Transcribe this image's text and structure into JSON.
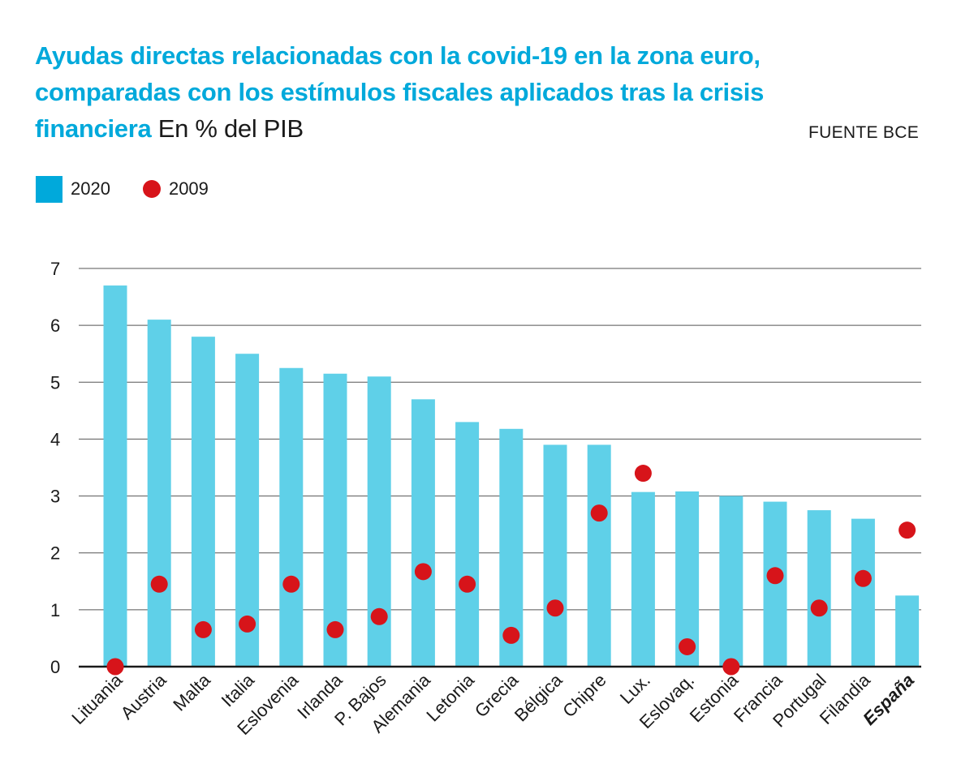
{
  "header": {
    "title": "Ayudas directas relacionadas con la covid-19 en la zona euro, comparadas con los estímulos fiscales aplicados tras la crisis financiera",
    "unit": "En % del PIB",
    "source": "FUENTE BCE"
  },
  "colors": {
    "bar": "#5fd0e8",
    "dot": "#d7141a",
    "title": "#00a9db",
    "grid": "#555555"
  },
  "chart_data": {
    "type": "bar",
    "categories": [
      "Lituania",
      "Austria",
      "Malta",
      "Italia",
      "Eslovenia",
      "Irlanda",
      "P. Bajos",
      "Alemania",
      "Letonia",
      "Grecia",
      "Bélgica",
      "Chipre",
      "Lux.",
      "Eslovaq.",
      "Estonia",
      "Francia",
      "Portugal",
      "Filandia",
      "España"
    ],
    "highlight_category": "España",
    "series": [
      {
        "name": "2020",
        "kind": "bar",
        "values": [
          6.7,
          6.1,
          5.8,
          5.5,
          5.25,
          5.15,
          5.1,
          4.7,
          4.3,
          4.18,
          3.9,
          3.9,
          3.07,
          3.08,
          3.0,
          2.9,
          2.75,
          2.6,
          1.25
        ]
      },
      {
        "name": "2009",
        "kind": "dot",
        "values": [
          0.0,
          1.45,
          0.65,
          0.75,
          1.45,
          0.65,
          0.88,
          1.67,
          1.45,
          0.55,
          1.03,
          2.7,
          3.4,
          0.35,
          0.0,
          1.6,
          1.03,
          1.55,
          2.4
        ]
      }
    ],
    "yticks": [
      "0",
      "1",
      "2",
      "3",
      "4",
      "5",
      "6",
      "7"
    ],
    "ylim": [
      0,
      7
    ],
    "grid": true,
    "legend": "top-left"
  }
}
